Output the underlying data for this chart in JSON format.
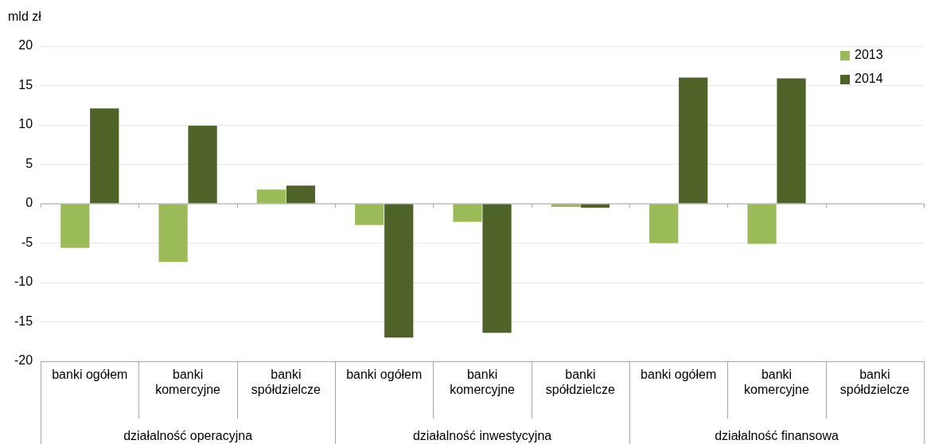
{
  "chart_data": {
    "type": "bar",
    "ylabel": "mld zł",
    "categories": [
      "banki ogółem",
      "banki\nkomercyjne",
      "banki\nspółdzielcze",
      "banki ogółem",
      "banki\nkomercyjne",
      "banki\nspółdzielcze",
      "banki ogółem",
      "banki\nkomercyjne",
      "banki\nspółdzielcze"
    ],
    "series": [
      {
        "name": "2013",
        "color": "#9bbb59",
        "values": [
          -5.6,
          -7.4,
          1.8,
          -2.7,
          -2.3,
          -0.4,
          -5.0,
          -5.1,
          null
        ]
      },
      {
        "name": "2014",
        "color": "#4f6228",
        "values": [
          12.1,
          9.9,
          2.3,
          -17.0,
          -16.4,
          -0.5,
          16.0,
          15.9,
          null
        ]
      }
    ],
    "ylim": [
      -20,
      20
    ],
    "yticks": [
      -20,
      -15,
      -10,
      -5,
      0,
      5,
      10,
      15,
      20
    ],
    "grid": "y",
    "legend": "top right",
    "annotations": [
      "działalność operacyjna",
      "działalność inwestycyjna",
      "działalność finansowa"
    ]
  }
}
